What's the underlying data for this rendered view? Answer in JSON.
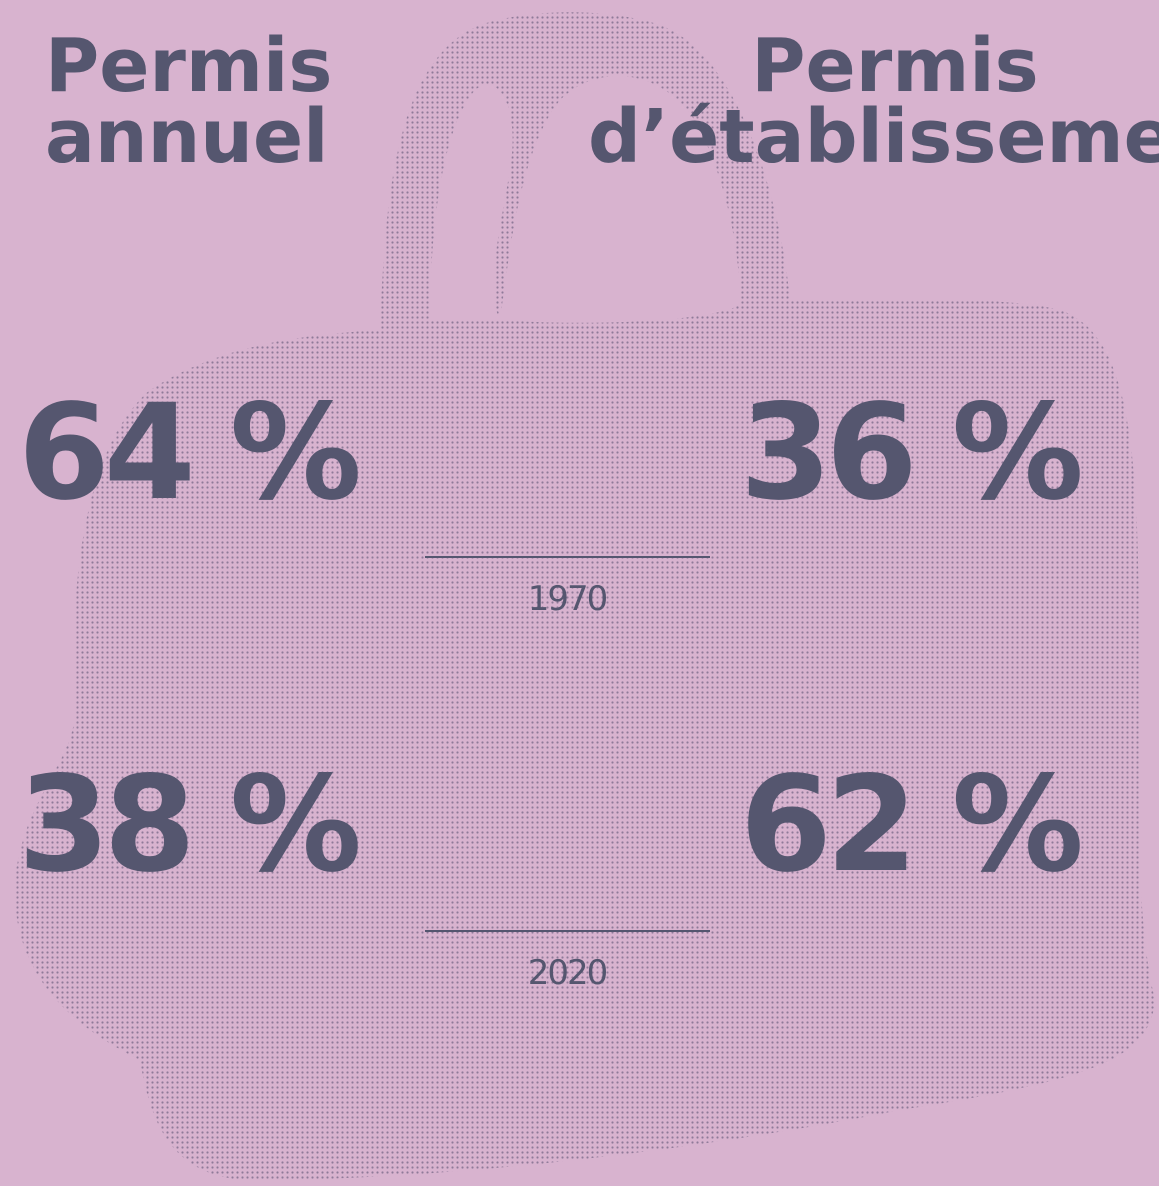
{
  "columns": [
    {
      "lines": [
        "Permis",
        "annuel"
      ]
    },
    {
      "lines": [
        "Permis",
        "d’établissement"
      ]
    }
  ],
  "rows": [
    {
      "year": "1970",
      "values": [
        "64 %",
        "36 %"
      ]
    },
    {
      "year": "2020",
      "values": [
        "38 %",
        "62 %"
      ]
    }
  ]
}
